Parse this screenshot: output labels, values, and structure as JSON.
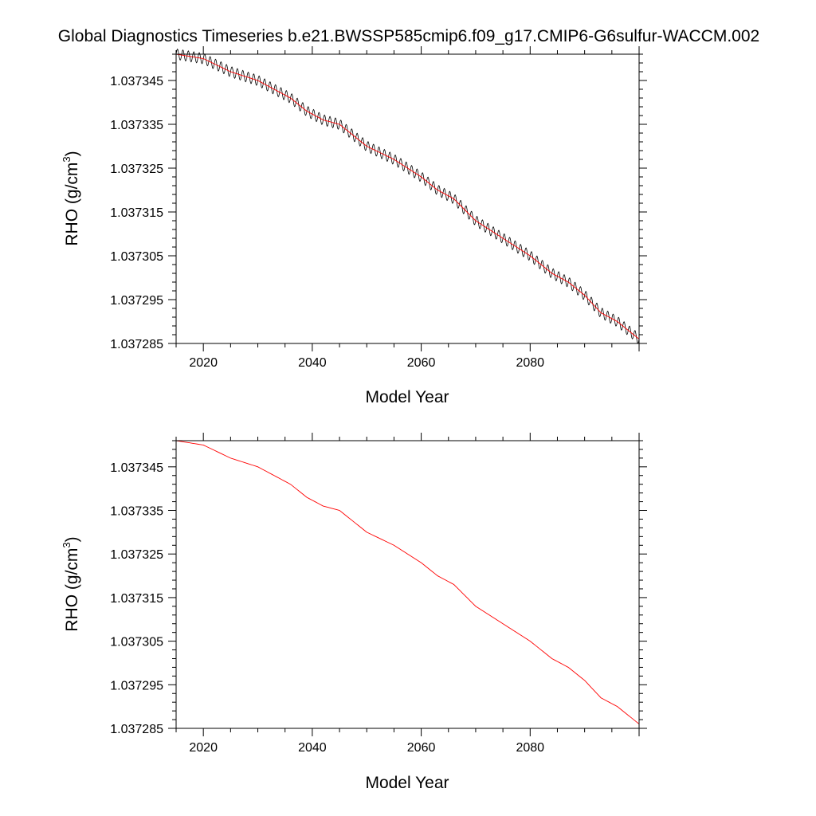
{
  "figure_title": "Global Diagnostics Timeseries b.e21.BWSSP585cmip6.f09_g17.CMIP6-G6sulfur-WACCM.002",
  "chart_data": [
    {
      "type": "line",
      "xlabel": "Model Year",
      "ylabel": "RHO (g/cm3)",
      "ylabel_main": "RHO (g/cm",
      "ylabel_sup": "3",
      "ylabel_close": ")",
      "xlim": [
        2015,
        2100
      ],
      "ylim": [
        1.037285,
        1.037351
      ],
      "x_ticks": [
        "2020",
        "2040",
        "2060",
        "2080"
      ],
      "y_ticks": [
        "1.037345",
        "1.037335",
        "1.037325",
        "1.037315",
        "1.037305",
        "1.037295",
        "1.037285"
      ],
      "grid": false,
      "series": [
        {
          "style": "monthly",
          "color": "#000000",
          "seasonal_amplitude": 1.2e-06,
          "x": [
            2015,
            2020,
            2025,
            2030,
            2033,
            2036,
            2039,
            2042,
            2045,
            2047,
            2050,
            2055,
            2060,
            2063,
            2066,
            2070,
            2075,
            2080,
            2084,
            2087,
            2090,
            2093,
            2096,
            2100
          ],
          "y": [
            1.037351,
            1.03735,
            1.037347,
            1.037345,
            1.037343,
            1.037341,
            1.037338,
            1.037336,
            1.037335,
            1.037333,
            1.03733,
            1.037327,
            1.037323,
            1.03732,
            1.037318,
            1.037313,
            1.037309,
            1.037305,
            1.037301,
            1.037299,
            1.037296,
            1.037292,
            1.03729,
            1.037286
          ]
        },
        {
          "style": "annual-mean",
          "color": "#ff0000",
          "x": [
            2015,
            2020,
            2025,
            2030,
            2033,
            2036,
            2039,
            2042,
            2045,
            2047,
            2050,
            2055,
            2060,
            2063,
            2066,
            2070,
            2075,
            2080,
            2084,
            2087,
            2090,
            2093,
            2096,
            2100
          ],
          "y": [
            1.037351,
            1.03735,
            1.037347,
            1.037345,
            1.037343,
            1.037341,
            1.037338,
            1.037336,
            1.037335,
            1.037333,
            1.03733,
            1.037327,
            1.037323,
            1.03732,
            1.037318,
            1.037313,
            1.037309,
            1.037305,
            1.037301,
            1.037299,
            1.037296,
            1.037292,
            1.03729,
            1.037286
          ]
        }
      ]
    },
    {
      "type": "line",
      "xlabel": "Model Year",
      "ylabel": "RHO (g/cm3)",
      "ylabel_main": "RHO (g/cm",
      "ylabel_sup": "3",
      "ylabel_close": ")",
      "xlim": [
        2015,
        2100
      ],
      "ylim": [
        1.037285,
        1.037351
      ],
      "x_ticks": [
        "2020",
        "2040",
        "2060",
        "2080"
      ],
      "y_ticks": [
        "1.037345",
        "1.037335",
        "1.037325",
        "1.037315",
        "1.037305",
        "1.037295",
        "1.037285"
      ],
      "grid": false,
      "series": [
        {
          "style": "annual-mean",
          "color": "#ff0000",
          "x": [
            2015,
            2020,
            2025,
            2030,
            2033,
            2036,
            2039,
            2042,
            2045,
            2047,
            2050,
            2055,
            2060,
            2063,
            2066,
            2070,
            2075,
            2080,
            2084,
            2087,
            2090,
            2093,
            2096,
            2100
          ],
          "y": [
            1.037351,
            1.03735,
            1.037347,
            1.037345,
            1.037343,
            1.037341,
            1.037338,
            1.037336,
            1.037335,
            1.037333,
            1.03733,
            1.037327,
            1.037323,
            1.03732,
            1.037318,
            1.037313,
            1.037309,
            1.037305,
            1.037301,
            1.037299,
            1.037296,
            1.037292,
            1.03729,
            1.037286
          ]
        }
      ]
    }
  ]
}
